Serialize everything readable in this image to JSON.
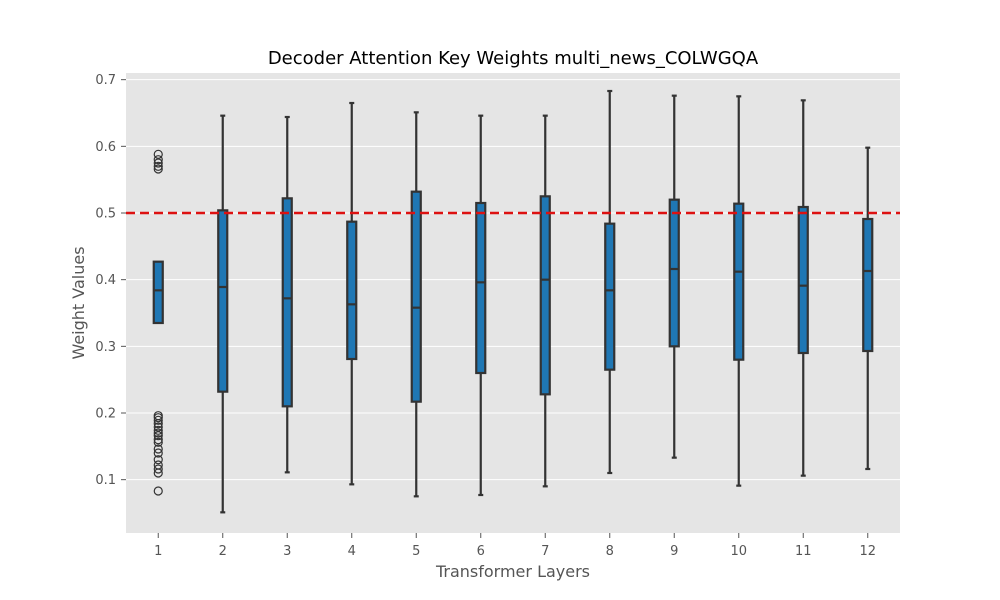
{
  "chart_data": {
    "type": "box",
    "title": "Decoder Attention Key Weights multi_news_COLWGQA",
    "xlabel": "Transformer Layers",
    "ylabel": "Weight Values",
    "ylim": [
      0.02,
      0.71
    ],
    "yticks": [
      "0.1",
      "0.2",
      "0.3",
      "0.4",
      "0.5",
      "0.6",
      "0.7"
    ],
    "grid": true,
    "colors": {
      "plot_background": "#e5e5e5",
      "grid": "#ffffff",
      "box_fill": "#1f77b4",
      "box_edge": "#333333",
      "reference_line": "#dd1111"
    },
    "reference_line": {
      "y": 0.5,
      "style": "dashed"
    },
    "categories": [
      "1",
      "2",
      "3",
      "4",
      "5",
      "6",
      "7",
      "8",
      "9",
      "10",
      "11",
      "12"
    ],
    "boxes": [
      {
        "min": 0.335,
        "q1": 0.335,
        "median": 0.384,
        "q3": 0.427,
        "max": 0.427,
        "outliers": [
          0.588,
          0.58,
          0.575,
          0.57,
          0.566,
          0.196,
          0.193,
          0.189,
          0.184,
          0.179,
          0.174,
          0.17,
          0.166,
          0.16,
          0.156,
          0.146,
          0.14,
          0.13,
          0.122,
          0.116,
          0.11,
          0.083
        ]
      },
      {
        "min": 0.051,
        "q1": 0.232,
        "median": 0.389,
        "q3": 0.504,
        "max": 0.646,
        "outliers": []
      },
      {
        "min": 0.111,
        "q1": 0.21,
        "median": 0.372,
        "q3": 0.522,
        "max": 0.644,
        "outliers": []
      },
      {
        "min": 0.093,
        "q1": 0.281,
        "median": 0.363,
        "q3": 0.487,
        "max": 0.665,
        "outliers": []
      },
      {
        "min": 0.075,
        "q1": 0.217,
        "median": 0.358,
        "q3": 0.532,
        "max": 0.651,
        "outliers": []
      },
      {
        "min": 0.077,
        "q1": 0.26,
        "median": 0.396,
        "q3": 0.515,
        "max": 0.646,
        "outliers": []
      },
      {
        "min": 0.09,
        "q1": 0.228,
        "median": 0.4,
        "q3": 0.525,
        "max": 0.646,
        "outliers": []
      },
      {
        "min": 0.11,
        "q1": 0.265,
        "median": 0.384,
        "q3": 0.484,
        "max": 0.683,
        "outliers": []
      },
      {
        "min": 0.133,
        "q1": 0.3,
        "median": 0.416,
        "q3": 0.52,
        "max": 0.676,
        "outliers": []
      },
      {
        "min": 0.091,
        "q1": 0.28,
        "median": 0.412,
        "q3": 0.514,
        "max": 0.675,
        "outliers": []
      },
      {
        "min": 0.106,
        "q1": 0.29,
        "median": 0.391,
        "q3": 0.509,
        "max": 0.669,
        "outliers": []
      },
      {
        "min": 0.116,
        "q1": 0.293,
        "median": 0.413,
        "q3": 0.491,
        "max": 0.598,
        "outliers": []
      }
    ]
  }
}
